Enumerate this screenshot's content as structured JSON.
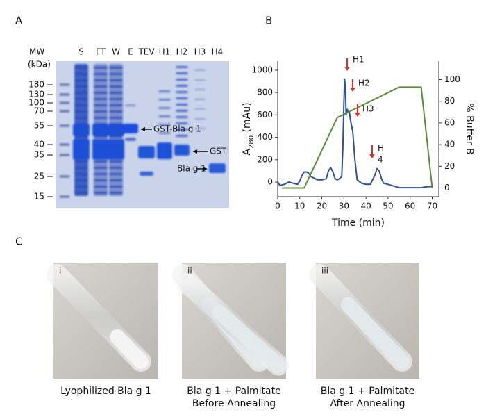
{
  "panel_a": {
    "label": "A",
    "mw_label": "MW",
    "unit_label": "(kDa)",
    "markers": [
      "180",
      "130",
      "100",
      "70",
      "55",
      "40",
      "35",
      "25",
      "15"
    ],
    "lanes": [
      "S",
      "FT",
      "W",
      "E",
      "TEV",
      "H1",
      "H2",
      "H3",
      "H4"
    ],
    "annotations": [
      "GST-Bla g 1",
      "GST",
      "Bla g 1"
    ]
  },
  "chart_data": {
    "type": "line",
    "label": "B",
    "xlabel": "Time (min)",
    "ylabel_parts": [
      "A",
      "280",
      " (mAu)"
    ],
    "y2label": "% Buffer B",
    "xlim": [
      0,
      73
    ],
    "xticks": [
      0,
      10,
      20,
      30,
      40,
      50,
      60,
      70
    ],
    "ylim": [
      -130,
      1080
    ],
    "yticks": [
      0,
      200,
      400,
      600,
      800,
      1000
    ],
    "y2lim": [
      -8,
      117
    ],
    "y2ticks": [
      0,
      20,
      40,
      60,
      80,
      100
    ],
    "annotations": [
      "H1",
      "H2",
      "H3",
      "H",
      "4"
    ],
    "series": [
      {
        "color": "#2f4f96",
        "x": [
          0,
          1,
          3,
          5,
          7,
          9,
          10,
          11,
          12,
          13,
          14,
          15,
          16,
          17,
          18,
          20,
          22,
          23,
          24,
          25,
          26,
          27,
          28,
          29,
          29.5,
          30,
          30.3,
          30.7,
          31,
          31.5,
          32,
          32.5,
          33,
          34,
          35,
          36,
          38,
          40,
          42,
          44,
          45,
          46,
          47,
          48,
          50,
          55,
          60,
          65,
          68,
          70
        ],
        "values": [
          0,
          -30,
          -20,
          0,
          -10,
          -20,
          10,
          60,
          90,
          90,
          80,
          50,
          40,
          30,
          20,
          20,
          30,
          100,
          130,
          90,
          30,
          20,
          30,
          50,
          300,
          700,
          920,
          850,
          600,
          650,
          620,
          620,
          550,
          450,
          200,
          20,
          -10,
          -20,
          -20,
          60,
          120,
          100,
          30,
          -10,
          -20,
          -50,
          -50,
          -50,
          -40,
          -40
        ]
      },
      {
        "color": "#5b8c3a",
        "axis": "y2",
        "x": [
          2,
          12,
          27,
          55,
          65,
          70
        ],
        "values": [
          0,
          0,
          65,
          93,
          93,
          0
        ]
      }
    ]
  },
  "panel_c": {
    "label": "C",
    "photos": [
      {
        "numeral": "i",
        "caption": [
          "Lyophilized Bla g 1"
        ]
      },
      {
        "numeral": "ii",
        "caption": [
          "Bla g 1 + Palmitate",
          "Before Annealing"
        ]
      },
      {
        "numeral": "iii",
        "caption": [
          "Bla g 1 + Palmitate",
          "After Annealing"
        ]
      }
    ]
  }
}
